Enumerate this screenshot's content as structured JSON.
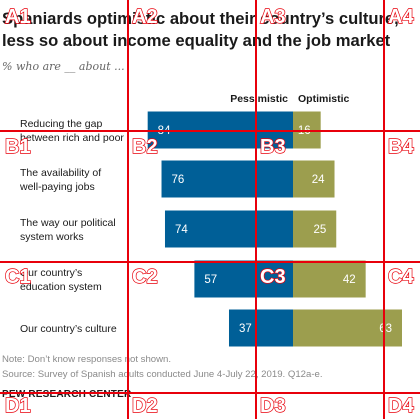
{
  "title_lines": [
    "Spaniards optimistic about their country’s culture,",
    "less so about income equality and the job market"
  ],
  "subtitle": "% who are __ about ...",
  "note": "Note: Don’t know responses not shown.",
  "source": "Source: Survey of Spanish adults conducted June 4-July 22, 2019. Q12a-e.",
  "logo": "PEW RESEARCH CENTER",
  "colors": {
    "pessimistic": "#005f97",
    "optimistic": "#9c9e4e",
    "grid": "#e8000b"
  },
  "chart_data": {
    "type": "bar",
    "orientation": "horizontal-diverging",
    "categories": [
      [
        "Reducing the gap",
        "between rich and poor"
      ],
      [
        "The availability of",
        "well-paying jobs"
      ],
      [
        "The way our political",
        "system works"
      ],
      [
        "Our country’s",
        "education system"
      ],
      [
        "Our country’s culture"
      ]
    ],
    "series": [
      {
        "name": "Pessimistic",
        "values": [
          84,
          76,
          74,
          57,
          37
        ]
      },
      {
        "name": "Optimistic",
        "values": [
          16,
          24,
          25,
          42,
          63
        ]
      }
    ]
  },
  "grid_overlay": {
    "cells": [
      "A1",
      "A2",
      "A3",
      "A4",
      "B1",
      "B2",
      "B3",
      "B4",
      "C1",
      "C2",
      "C3",
      "C4",
      "D1",
      "D2",
      "D3",
      "D4"
    ]
  }
}
